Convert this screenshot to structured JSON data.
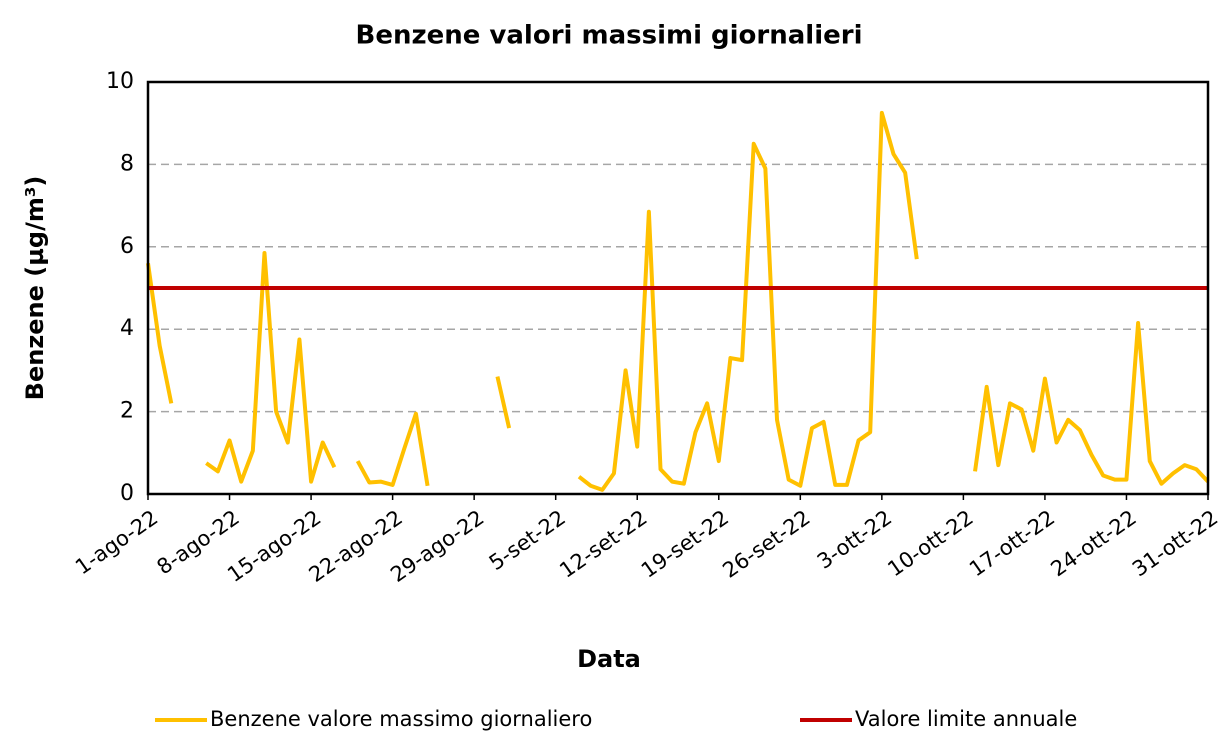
{
  "chart_data": {
    "type": "line",
    "title": "Benzene valori massimi giornalieri",
    "x_label": "Data",
    "y_label": "Benzene (µg/m³)",
    "x": [
      "2022-08-01",
      "2022-08-02",
      "2022-08-03",
      "2022-08-04",
      "2022-08-05",
      "2022-08-06",
      "2022-08-07",
      "2022-08-08",
      "2022-08-09",
      "2022-08-10",
      "2022-08-11",
      "2022-08-12",
      "2022-08-13",
      "2022-08-14",
      "2022-08-15",
      "2022-08-16",
      "2022-08-17",
      "2022-08-18",
      "2022-08-19",
      "2022-08-20",
      "2022-08-21",
      "2022-08-22",
      "2022-08-23",
      "2022-08-24",
      "2022-08-25",
      "2022-08-26",
      "2022-08-27",
      "2022-08-28",
      "2022-08-29",
      "2022-08-30",
      "2022-08-31",
      "2022-09-01",
      "2022-09-02",
      "2022-09-03",
      "2022-09-04",
      "2022-09-05",
      "2022-09-06",
      "2022-09-07",
      "2022-09-08",
      "2022-09-09",
      "2022-09-10",
      "2022-09-11",
      "2022-09-12",
      "2022-09-13",
      "2022-09-14",
      "2022-09-15",
      "2022-09-16",
      "2022-09-17",
      "2022-09-18",
      "2022-09-19",
      "2022-09-20",
      "2022-09-21",
      "2022-09-22",
      "2022-09-23",
      "2022-09-24",
      "2022-09-25",
      "2022-09-26",
      "2022-09-27",
      "2022-09-28",
      "2022-09-29",
      "2022-09-30",
      "2022-10-01",
      "2022-10-02",
      "2022-10-03",
      "2022-10-04",
      "2022-10-05",
      "2022-10-06",
      "2022-10-07",
      "2022-10-08",
      "2022-10-09",
      "2022-10-10",
      "2022-10-11",
      "2022-10-12",
      "2022-10-13",
      "2022-10-14",
      "2022-10-15",
      "2022-10-16",
      "2022-10-17",
      "2022-10-18",
      "2022-10-19",
      "2022-10-20",
      "2022-10-21",
      "2022-10-22",
      "2022-10-23",
      "2022-10-24",
      "2022-10-25",
      "2022-10-26",
      "2022-10-27",
      "2022-10-28",
      "2022-10-29",
      "2022-10-30",
      "2022-10-31"
    ],
    "series": [
      {
        "name": "Benzene valore massimo giornaliero",
        "color": "#ffc000",
        "values": [
          5.6,
          3.6,
          2.2,
          null,
          null,
          0.75,
          0.55,
          1.3,
          0.3,
          1.05,
          5.85,
          2.0,
          1.25,
          3.75,
          0.3,
          1.25,
          0.65,
          null,
          0.8,
          0.28,
          0.3,
          0.22,
          1.1,
          1.95,
          0.2,
          null,
          null,
          null,
          null,
          null,
          2.85,
          1.6,
          null,
          null,
          null,
          null,
          null,
          0.42,
          0.2,
          0.1,
          0.5,
          3.0,
          1.15,
          6.85,
          0.6,
          0.3,
          0.25,
          1.5,
          2.2,
          0.8,
          3.3,
          3.25,
          8.5,
          7.9,
          1.8,
          0.35,
          0.2,
          1.6,
          1.75,
          0.22,
          0.22,
          1.3,
          1.5,
          9.25,
          8.25,
          7.8,
          5.7,
          null,
          null,
          null,
          null,
          0.55,
          2.6,
          0.7,
          2.2,
          2.05,
          1.05,
          2.8,
          1.25,
          1.8,
          1.55,
          0.95,
          0.45,
          0.35,
          0.35,
          4.15,
          0.8,
          0.25,
          0.5,
          0.7,
          0.6,
          0.3
        ]
      }
    ],
    "reference_lines": [
      {
        "name": "Valore limite annuale",
        "color": "#c00000",
        "value": 5
      }
    ],
    "xlim": [
      "2022-08-01",
      "2022-10-31"
    ],
    "xticks": [
      {
        "value": "2022-08-01",
        "label": "1-ago-22"
      },
      {
        "value": "2022-08-08",
        "label": "8-ago-22"
      },
      {
        "value": "2022-08-15",
        "label": "15-ago-22"
      },
      {
        "value": "2022-08-22",
        "label": "22-ago-22"
      },
      {
        "value": "2022-08-29",
        "label": "29-ago-22"
      },
      {
        "value": "2022-09-05",
        "label": "5-set-22"
      },
      {
        "value": "2022-09-12",
        "label": "12-set-22"
      },
      {
        "value": "2022-09-19",
        "label": "19-set-22"
      },
      {
        "value": "2022-09-26",
        "label": "26-set-22"
      },
      {
        "value": "2022-10-03",
        "label": "3-ott-22"
      },
      {
        "value": "2022-10-10",
        "label": "10-ott-22"
      },
      {
        "value": "2022-10-17",
        "label": "17-ott-22"
      },
      {
        "value": "2022-10-24",
        "label": "24-ott-22"
      },
      {
        "value": "2022-10-31",
        "label": "31-ott-22"
      }
    ],
    "ylim": [
      0,
      10
    ],
    "yticks": [
      0,
      2,
      4,
      6,
      8,
      10
    ],
    "grid": true,
    "legend": "bottom"
  }
}
